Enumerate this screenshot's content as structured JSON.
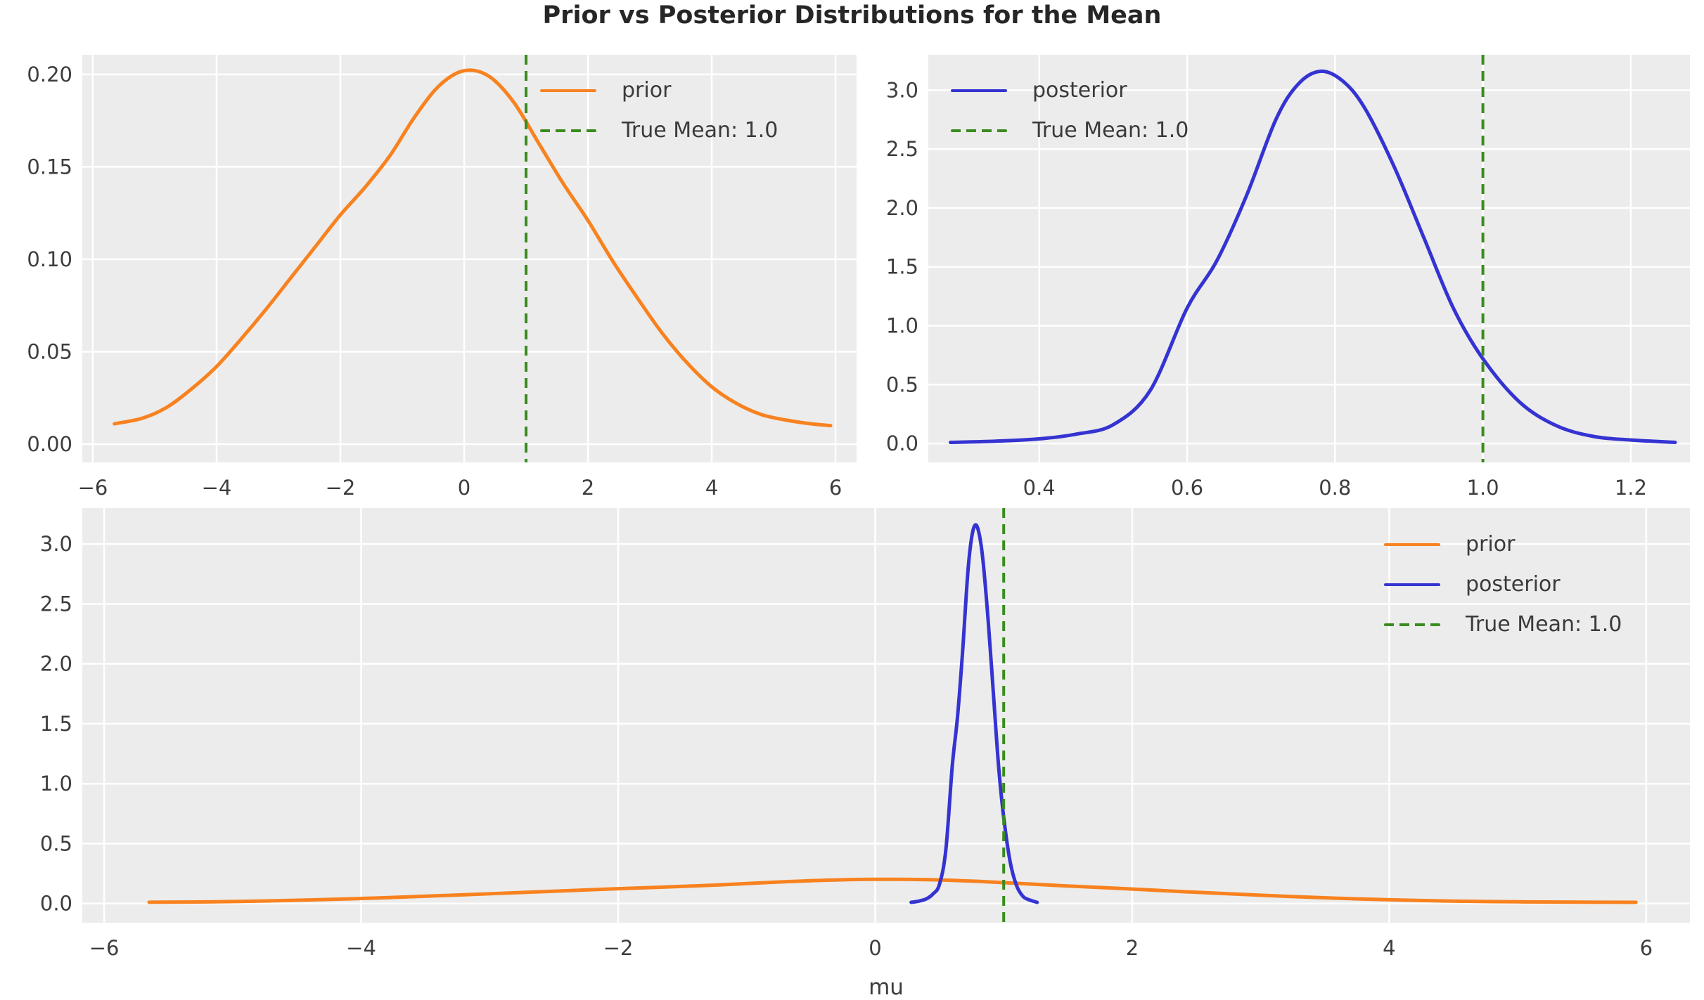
{
  "figure": {
    "title": "Prior vs Posterior Distributions for the Mean",
    "colors": {
      "prior": "#f8821f",
      "posterior": "#3533d1",
      "true_mean": "#3a8c1e",
      "panel_bg": "#ececec",
      "grid": "#ffffff",
      "tick_text": "#3d3d3d",
      "title_text": "#262626",
      "background": "#ffffff"
    }
  },
  "series_data": {
    "prior": {
      "label": "prior",
      "color": "#f8821f",
      "x": [
        -5.65,
        -5.2,
        -4.8,
        -4.4,
        -4.0,
        -3.6,
        -3.2,
        -2.8,
        -2.4,
        -2.0,
        -1.6,
        -1.2,
        -0.8,
        -0.4,
        0.0,
        0.4,
        0.8,
        1.2,
        1.6,
        2.0,
        2.4,
        2.8,
        3.2,
        3.6,
        4.0,
        4.4,
        4.8,
        5.2,
        5.6,
        5.92
      ],
      "y": [
        0.011,
        0.014,
        0.02,
        0.03,
        0.042,
        0.057,
        0.073,
        0.09,
        0.107,
        0.124,
        0.139,
        0.156,
        0.177,
        0.194,
        0.202,
        0.199,
        0.185,
        0.163,
        0.141,
        0.121,
        0.099,
        0.079,
        0.06,
        0.044,
        0.031,
        0.022,
        0.016,
        0.013,
        0.011,
        0.01
      ]
    },
    "posterior": {
      "label": "posterior",
      "color": "#3533d1",
      "x": [
        0.28,
        0.34,
        0.4,
        0.45,
        0.5,
        0.55,
        0.6,
        0.64,
        0.68,
        0.72,
        0.75,
        0.78,
        0.81,
        0.84,
        0.88,
        0.92,
        0.96,
        1.0,
        1.05,
        1.1,
        1.15,
        1.2,
        1.26
      ],
      "y": [
        0.01,
        0.02,
        0.04,
        0.08,
        0.16,
        0.45,
        1.15,
        1.55,
        2.1,
        2.75,
        3.05,
        3.16,
        3.08,
        2.85,
        2.35,
        1.75,
        1.15,
        0.72,
        0.35,
        0.15,
        0.06,
        0.03,
        0.01
      ]
    }
  },
  "chart_data": [
    {
      "id": "prior-panel",
      "type": "line",
      "position": "top-left",
      "grid": true,
      "xlim": [
        -6.17,
        6.34
      ],
      "ylim": [
        -0.0099,
        0.2106
      ],
      "xticks": [
        -6,
        -4,
        -2,
        0,
        2,
        4,
        6
      ],
      "xtick_labels": [
        "−6",
        "−4",
        "−2",
        "0",
        "2",
        "4",
        "6"
      ],
      "yticks": [
        0.0,
        0.05,
        0.1,
        0.15,
        0.2
      ],
      "ytick_labels": [
        "0.00",
        "0.05",
        "0.10",
        "0.15",
        "0.20"
      ],
      "series": [
        "prior"
      ],
      "vline": {
        "x": 1.0,
        "style": "dashed",
        "color": "#3a8c1e",
        "label": "True Mean: 1.0"
      },
      "legend": {
        "position": "upper-right-inset",
        "items": [
          {
            "label": "prior",
            "swatch": "solid",
            "color": "#f8821f"
          },
          {
            "label": "True Mean: 1.0",
            "swatch": "dashed",
            "color": "#3a8c1e"
          }
        ]
      }
    },
    {
      "id": "posterior-panel",
      "type": "line",
      "position": "top-right",
      "grid": true,
      "xlim": [
        0.25,
        1.28
      ],
      "ylim": [
        -0.16,
        3.3
      ],
      "xticks": [
        0.4,
        0.6,
        0.8,
        1.0,
        1.2
      ],
      "xtick_labels": [
        "0.4",
        "0.6",
        "0.8",
        "1.0",
        "1.2"
      ],
      "yticks": [
        0.0,
        0.5,
        1.0,
        1.5,
        2.0,
        2.5,
        3.0
      ],
      "ytick_labels": [
        "0.0",
        "0.5",
        "1.0",
        "1.5",
        "2.0",
        "2.5",
        "3.0"
      ],
      "series": [
        "posterior"
      ],
      "vline": {
        "x": 1.0,
        "style": "dashed",
        "color": "#3a8c1e",
        "label": "True Mean: 1.0"
      },
      "legend": {
        "position": "upper-left-inset",
        "items": [
          {
            "label": "posterior",
            "swatch": "solid",
            "color": "#3533d1"
          },
          {
            "label": "True Mean: 1.0",
            "swatch": "dashed",
            "color": "#3a8c1e"
          }
        ]
      }
    },
    {
      "id": "combined-panel",
      "type": "line",
      "position": "bottom",
      "grid": true,
      "xlabel": "mu",
      "xlim": [
        -6.17,
        6.34
      ],
      "ylim": [
        -0.16,
        3.3
      ],
      "xticks": [
        -6,
        -4,
        -2,
        0,
        2,
        4,
        6
      ],
      "xtick_labels": [
        "−6",
        "−4",
        "−2",
        "0",
        "2",
        "4",
        "6"
      ],
      "yticks": [
        0.0,
        0.5,
        1.0,
        1.5,
        2.0,
        2.5,
        3.0
      ],
      "ytick_labels": [
        "0.0",
        "0.5",
        "1.0",
        "1.5",
        "2.0",
        "2.5",
        "3.0"
      ],
      "series": [
        "prior",
        "posterior"
      ],
      "vline": {
        "x": 1.0,
        "style": "dashed",
        "color": "#3a8c1e",
        "label": "True Mean: 1.0"
      },
      "legend": {
        "position": "upper-right-inset",
        "items": [
          {
            "label": "prior",
            "swatch": "solid",
            "color": "#f8821f"
          },
          {
            "label": "posterior",
            "swatch": "solid",
            "color": "#3533d1"
          },
          {
            "label": "True Mean: 1.0",
            "swatch": "dashed",
            "color": "#3a8c1e"
          }
        ]
      }
    }
  ]
}
